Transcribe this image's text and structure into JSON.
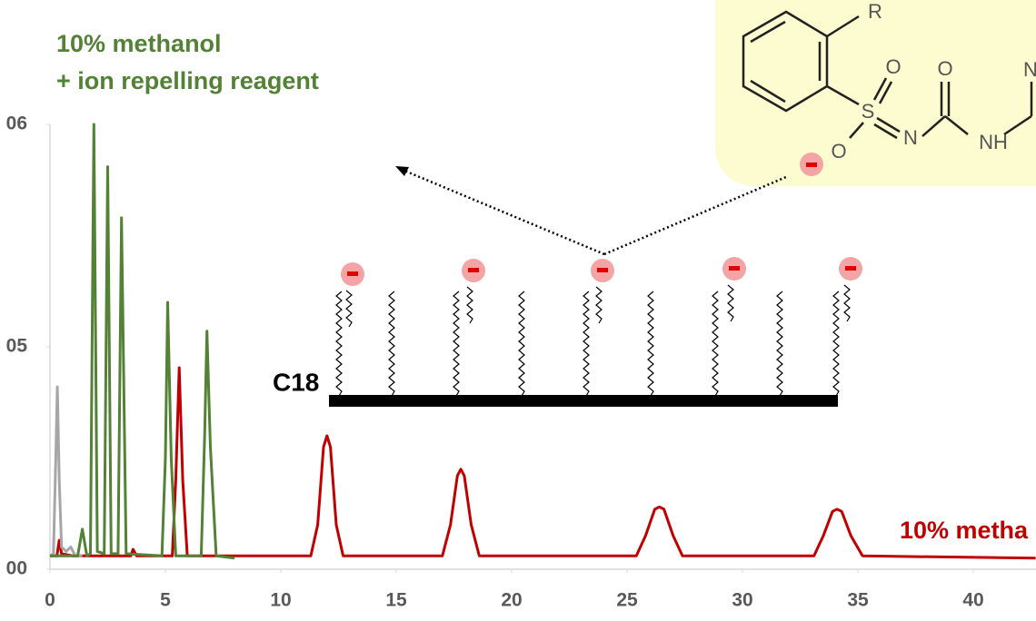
{
  "chart_data": {
    "type": "line",
    "annotations": [
      "10% methanol",
      "+ ion repelling reagent",
      "10% metha",
      "C18"
    ],
    "molecule_labels": [
      "R",
      "O",
      "O",
      "S",
      "N",
      "O",
      "NH",
      "N"
    ],
    "xlim": [
      0,
      42.7
    ],
    "ylim": [
      0,
      2
    ],
    "xticks": [
      0,
      5,
      10,
      15,
      20,
      25,
      30,
      35,
      40
    ],
    "yticks": [
      {
        "value": 0,
        "label": "00"
      },
      {
        "value": 1,
        "label": "05"
      },
      {
        "value": 2,
        "label": "06"
      }
    ],
    "series": [
      {
        "color": "#c00000",
        "x": [
          0,
          0.3,
          0.4,
          0.5,
          1,
          3.5,
          3.6,
          3.75,
          5.3,
          5.45,
          5.6,
          5.75,
          5.95,
          11.3,
          11.6,
          11.85,
          12.0,
          12.15,
          12.4,
          12.7,
          17.0,
          17.35,
          17.65,
          17.8,
          17.95,
          18.25,
          18.6,
          25.4,
          25.8,
          26.2,
          26.4,
          26.6,
          27.0,
          27.4,
          33.1,
          33.5,
          33.9,
          34.1,
          34.3,
          34.7,
          35.2,
          42.7
        ],
        "values": [
          0.06,
          0.06,
          0.13,
          0.07,
          0.06,
          0.06,
          0.09,
          0.06,
          0.06,
          0.4,
          0.906,
          0.4,
          0.06,
          0.06,
          0.2,
          0.55,
          0.6,
          0.55,
          0.2,
          0.06,
          0.06,
          0.2,
          0.42,
          0.45,
          0.42,
          0.2,
          0.06,
          0.06,
          0.15,
          0.27,
          0.28,
          0.27,
          0.15,
          0.06,
          0.06,
          0.15,
          0.26,
          0.27,
          0.26,
          0.15,
          0.06,
          0.05
        ]
      },
      {
        "color": "#a6a6a6",
        "x": [
          0,
          0.15,
          0.25,
          0.32,
          0.4,
          0.5,
          0.7,
          0.9,
          1.1,
          1.4
        ],
        "values": [
          0.06,
          0.07,
          0.5,
          0.82,
          0.4,
          0.1,
          0.08,
          0.1,
          0.06,
          0.06
        ]
      },
      {
        "color": "#538135",
        "x": [
          0,
          1.2,
          1.4,
          1.6,
          1.75,
          1.9,
          2.05,
          2.35,
          2.5,
          2.65,
          2.95,
          3.1,
          3.3,
          4.85,
          5.0,
          5.1,
          5.25,
          5.45,
          6.55,
          6.7,
          6.8,
          6.95,
          7.2,
          8.0
        ],
        "values": [
          0.06,
          0.06,
          0.18,
          0.06,
          0.07,
          2.0,
          0.08,
          0.07,
          1.81,
          0.07,
          0.07,
          1.58,
          0.07,
          0.06,
          0.5,
          1.2,
          0.5,
          0.06,
          0.06,
          0.6,
          1.07,
          0.55,
          0.06,
          0.05
        ]
      }
    ]
  }
}
